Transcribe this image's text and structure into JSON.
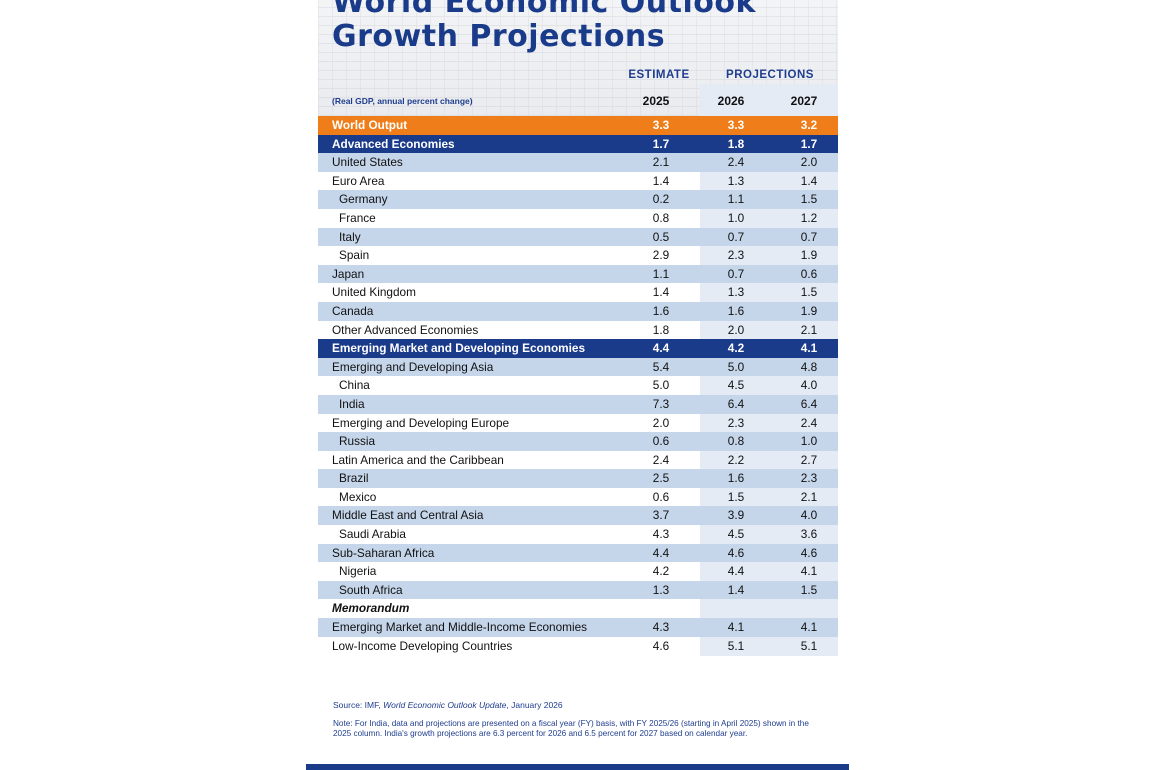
{
  "title_line1": "World Economic Outlook",
  "title_line2": "Growth Projections",
  "header": {
    "estimate": "ESTIMATE",
    "projections": "PROJECTIONS",
    "subtitle": "(Real GDP, annual percent change)",
    "years": [
      "2025",
      "2026",
      "2027"
    ]
  },
  "rows": [
    {
      "name": "World Output",
      "values": [
        "3.3",
        "3.3",
        "3.2"
      ],
      "style": "world"
    },
    {
      "name": "Advanced Economies",
      "values": [
        "1.7",
        "1.8",
        "1.7"
      ],
      "style": "group"
    },
    {
      "name": "United States",
      "values": [
        "2.1",
        "2.4",
        "2.0"
      ],
      "style": "alt"
    },
    {
      "name": "Euro Area",
      "values": [
        "1.4",
        "1.3",
        "1.4"
      ],
      "style": "light"
    },
    {
      "name": "Germany",
      "values": [
        "0.2",
        "1.1",
        "1.5"
      ],
      "style": "alt indent"
    },
    {
      "name": "France",
      "values": [
        "0.8",
        "1.0",
        "1.2"
      ],
      "style": "light indent"
    },
    {
      "name": "Italy",
      "values": [
        "0.5",
        "0.7",
        "0.7"
      ],
      "style": "alt indent"
    },
    {
      "name": "Spain",
      "values": [
        "2.9",
        "2.3",
        "1.9"
      ],
      "style": "light indent"
    },
    {
      "name": "Japan",
      "values": [
        "1.1",
        "0.7",
        "0.6"
      ],
      "style": "alt"
    },
    {
      "name": "United Kingdom",
      "values": [
        "1.4",
        "1.3",
        "1.5"
      ],
      "style": "light"
    },
    {
      "name": "Canada",
      "values": [
        "1.6",
        "1.6",
        "1.9"
      ],
      "style": "alt"
    },
    {
      "name": "Other Advanced Economies",
      "values": [
        "1.8",
        "2.0",
        "2.1"
      ],
      "style": "light"
    },
    {
      "name": "Emerging Market and Developing Economies",
      "values": [
        "4.4",
        "4.2",
        "4.1"
      ],
      "style": "group"
    },
    {
      "name": "Emerging and Developing Asia",
      "values": [
        "5.4",
        "5.0",
        "4.8"
      ],
      "style": "alt"
    },
    {
      "name": "China",
      "values": [
        "5.0",
        "4.5",
        "4.0"
      ],
      "style": "light indent"
    },
    {
      "name": "India",
      "values": [
        "7.3",
        "6.4",
        "6.4"
      ],
      "style": "alt indent"
    },
    {
      "name": "Emerging and Developing Europe",
      "values": [
        "2.0",
        "2.3",
        "2.4"
      ],
      "style": "light"
    },
    {
      "name": "Russia",
      "values": [
        "0.6",
        "0.8",
        "1.0"
      ],
      "style": "alt indent"
    },
    {
      "name": "Latin America and the Caribbean",
      "values": [
        "2.4",
        "2.2",
        "2.7"
      ],
      "style": "light"
    },
    {
      "name": "Brazil",
      "values": [
        "2.5",
        "1.6",
        "2.3"
      ],
      "style": "alt indent"
    },
    {
      "name": "Mexico",
      "values": [
        "0.6",
        "1.5",
        "2.1"
      ],
      "style": "light indent"
    },
    {
      "name": "Middle East and Central Asia",
      "values": [
        "3.7",
        "3.9",
        "4.0"
      ],
      "style": "alt"
    },
    {
      "name": "Saudi Arabia",
      "values": [
        "4.3",
        "4.5",
        "3.6"
      ],
      "style": "light indent"
    },
    {
      "name": "Sub-Saharan Africa",
      "values": [
        "4.4",
        "4.6",
        "4.6"
      ],
      "style": "alt"
    },
    {
      "name": "Nigeria",
      "values": [
        "4.2",
        "4.4",
        "4.1"
      ],
      "style": "light indent"
    },
    {
      "name": "South Africa",
      "values": [
        "1.3",
        "1.4",
        "1.5"
      ],
      "style": "alt indent"
    },
    {
      "name": "Memorandum",
      "values": [
        "",
        "",
        ""
      ],
      "style": "light italic"
    },
    {
      "name": "Emerging Market and Middle-Income Economies",
      "values": [
        "4.3",
        "4.1",
        "4.1"
      ],
      "style": "alt"
    },
    {
      "name": "Low-Income Developing Countries",
      "values": [
        "4.6",
        "5.1",
        "5.1"
      ],
      "style": "light"
    }
  ],
  "source_prefix": "Source: IMF, ",
  "source_title": "World Economic Outlook Update",
  "source_suffix": ", January 2026",
  "note": "Note: For India, data and projections are presented on a fiscal year (FY) basis, with FY 2025/26 (starting in April 2025) shown in the 2025 column. India's growth projections are 6.3 percent for 2026 and 6.5 percent for 2027 based on calendar year.",
  "colors": {
    "navy": "#1a3a8a",
    "orange": "#ef7d1a",
    "light_blue": "#c5d5ea"
  }
}
